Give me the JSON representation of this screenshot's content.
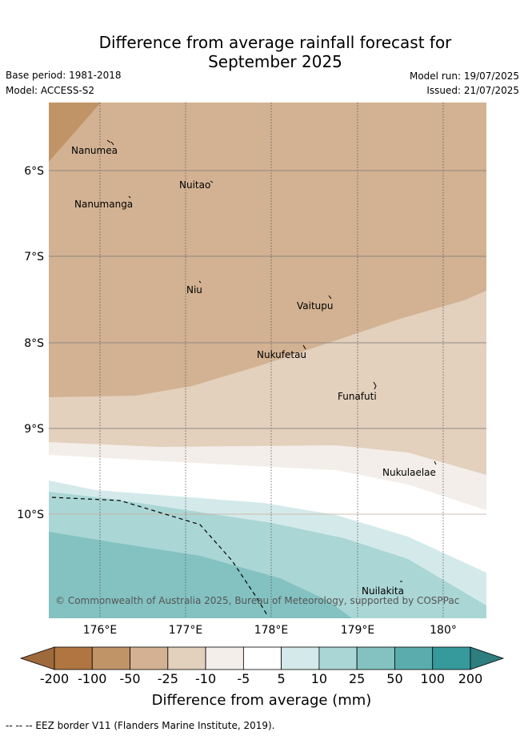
{
  "title_line1": "Difference from average rainfall forecast for",
  "title_line2": "September 2025",
  "base_period": "Base period: 1981-2018",
  "model": "Model: ACCESS-S2",
  "model_run": "Model run: 19/07/2025",
  "issued": "Issued: 21/07/2025",
  "copyright": "© Commonwealth of Australia 2025, Bureau of Meteorology, supported by COSPPac",
  "lat_ticks": [
    "6°S",
    "7°S",
    "8°S",
    "9°S",
    "10°S"
  ],
  "lon_ticks": [
    "176°E",
    "177°E",
    "178°E",
    "179°E",
    "180°"
  ],
  "places": [
    "Nanumea",
    "Nuitao",
    "Nanumanga",
    "Niu",
    "Vaitupu",
    "Nukufetau",
    "Funafuti",
    "Nukulaelae",
    "Nuilakita"
  ],
  "legend": {
    "ticks": [
      "-200",
      "-100",
      "-50",
      "-25",
      "-10",
      "-5",
      "5",
      "10",
      "25",
      "50",
      "100",
      "200"
    ],
    "label": "Difference from average (mm)",
    "colors": [
      "#9e6a3c",
      "#b07540",
      "#c19467",
      "#d2b292",
      "#e3d0bd",
      "#f3eee9",
      "#ffffff",
      "#d4eaea",
      "#aad6d5",
      "#83c2c1",
      "#5aadac",
      "#36999b",
      "#2e7d7f"
    ]
  },
  "footer": "-- -- -- EEZ border V11 (Flanders Marine Institute, 2019)."
}
